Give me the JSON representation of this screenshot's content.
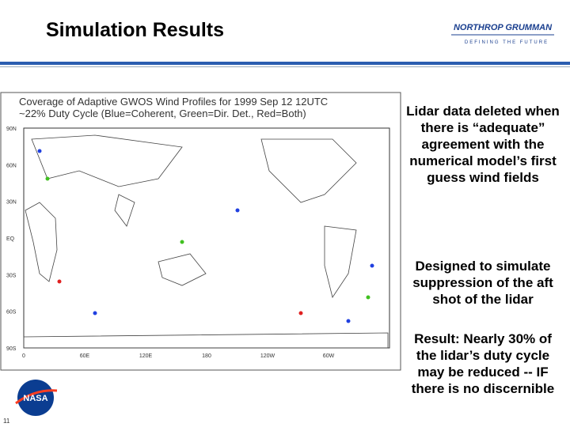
{
  "header": {
    "title": "Simulation Results",
    "logo": {
      "name": "NORTHROP GRUMMAN",
      "tagline": "DEFINING THE FUTURE"
    }
  },
  "figure": {
    "title_lines": [
      "Coverage of Adaptive GWOS Wind Profiles for 1999 Sep 12 12UTC",
      "~22% Duty Cycle (Blue=Coherent, Green=Dir. Det., Red=Both)"
    ],
    "y_labels": [
      "90N",
      "60N",
      "30N",
      "EQ",
      "30S",
      "60S",
      "90S"
    ],
    "x_labels": [
      "0",
      "60E",
      "120E",
      "180",
      "120W",
      "60W"
    ]
  },
  "notes": [
    "Lidar data deleted when there is “adequate” agreement with the numerical model’s first guess wind fields",
    "Designed to simulate suppression of the aft shot of the lidar",
    "Result: Nearly 30% of the lidar’s duty cycle may be reduced -- IF there is no discernible"
  ],
  "footer": {
    "page_number": "11",
    "logo": "NASA"
  }
}
